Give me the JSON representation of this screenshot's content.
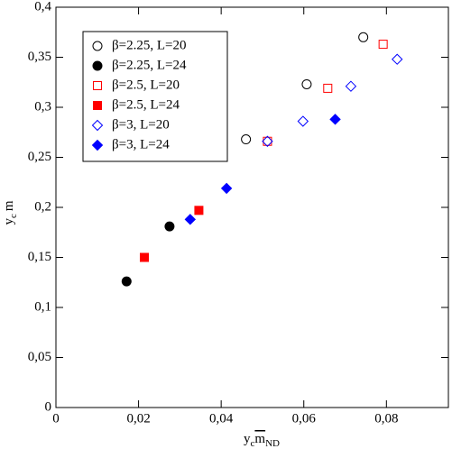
{
  "chart_data": {
    "type": "scatter",
    "xlabel": {
      "base": "y",
      "sub": "c",
      "main": "m",
      "sub2": "ND"
    },
    "ylabel": {
      "base": "y",
      "sub": "c",
      "main": "m"
    },
    "xlim": [
      0,
      0.095
    ],
    "xticks": [
      0,
      {
        "value": 0.02,
        "label": "0,02"
      },
      {
        "value": 0.04,
        "label": "0,04"
      },
      {
        "value": 0.06,
        "label": "0,06"
      },
      {
        "value": 0.08,
        "label": "0,08"
      }
    ],
    "ylim": [
      0,
      0.4
    ],
    "yticks": [
      0,
      {
        "value": 0.05,
        "label": "0,05"
      },
      {
        "value": 0.1,
        "label": "0,1"
      },
      {
        "value": 0.15,
        "label": "0,15"
      },
      {
        "value": 0.2,
        "label": "0,2"
      },
      {
        "value": 0.25,
        "label": "0,25"
      },
      {
        "value": 0.3,
        "label": "0,3"
      },
      {
        "value": 0.35,
        "label": "0,35"
      },
      {
        "value": 0.4,
        "label": "0,4"
      }
    ],
    "legend": "upper left",
    "series": [
      {
        "name": "β=2.25, L=20",
        "color": "#000000",
        "marker": "circle",
        "filled": false,
        "x": [
          0.046,
          0.0607,
          0.0744
        ],
        "values": [
          0.268,
          0.323,
          0.37
        ]
      },
      {
        "name": "β=2.25, L=24",
        "color": "#000000",
        "marker": "circle",
        "filled": true,
        "x": [
          0.0171,
          0.0275
        ],
        "values": [
          0.126,
          0.181
        ]
      },
      {
        "name": "β=2.5, L=20",
        "color": "#ff0000",
        "marker": "square",
        "filled": false,
        "x": [
          0.0512,
          0.0658,
          0.0792
        ],
        "values": [
          0.266,
          0.319,
          0.363
        ]
      },
      {
        "name": "β=2.5, L=24",
        "color": "#ff0000",
        "marker": "square",
        "filled": true,
        "x": [
          0.0214,
          0.0346
        ],
        "values": [
          0.15,
          0.197
        ]
      },
      {
        "name": "β=3, L=20",
        "color": "#0000ff",
        "marker": "diamond",
        "filled": false,
        "x": [
          0.0512,
          0.0598,
          0.0714,
          0.0826
        ],
        "values": [
          0.266,
          0.286,
          0.321,
          0.348
        ]
      },
      {
        "name": "β=3, L=24",
        "color": "#0000ff",
        "marker": "diamond",
        "filled": true,
        "x": [
          0.0325,
          0.0413,
          0.0676
        ],
        "values": [
          0.188,
          0.219,
          0.288
        ]
      }
    ]
  }
}
